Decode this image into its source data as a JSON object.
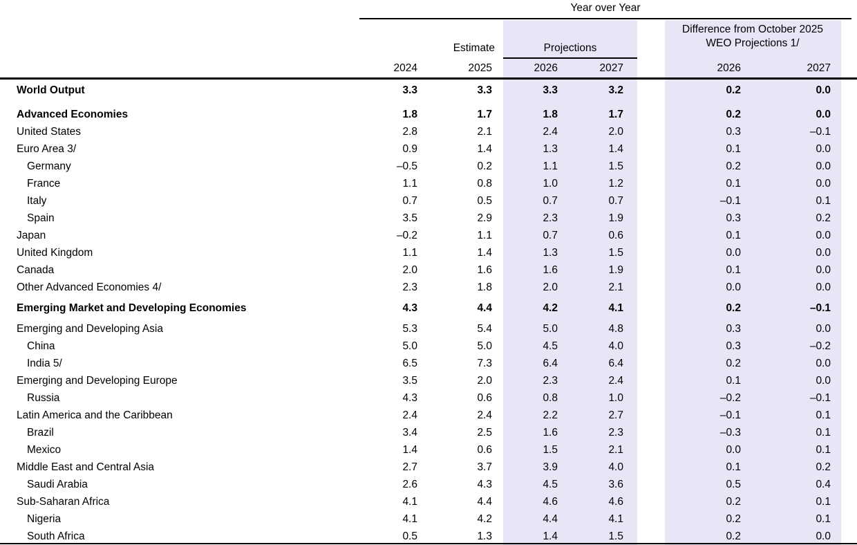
{
  "colors": {
    "highlight": "#e6e6f7",
    "rule": "#000000"
  },
  "header": {
    "year_over_year": "Year over Year",
    "estimate": "Estimate",
    "projections": "Projections",
    "difference_line1": "Difference from October 2025",
    "difference_line2": "WEO Projections 1/",
    "years": [
      "2024",
      "2025",
      "2026",
      "2027",
      "2026",
      "2027"
    ]
  },
  "table": {
    "column_keys": [
      "2024",
      "2025",
      "proj-2026",
      "proj-2027",
      "diff-2026",
      "diff-2027"
    ],
    "rows": [
      {
        "label": "World Output",
        "bold": true,
        "indent": 0,
        "gap_before": 0,
        "values": [
          "3.3",
          "3.3",
          "3.3",
          "3.2",
          "0.2",
          "0.0"
        ]
      },
      {
        "label": "Advanced Economies",
        "bold": true,
        "indent": 0,
        "gap_before": 10,
        "values": [
          "1.8",
          "1.7",
          "1.8",
          "1.7",
          "0.2",
          "0.0"
        ]
      },
      {
        "label": "United States",
        "bold": false,
        "indent": 0,
        "gap_before": 0,
        "values": [
          "2.8",
          "2.1",
          "2.4",
          "2.0",
          "0.3",
          "–0.1"
        ]
      },
      {
        "label": "Euro Area 3/",
        "bold": false,
        "indent": 0,
        "gap_before": 0,
        "values": [
          "0.9",
          "1.4",
          "1.3",
          "1.4",
          "0.1",
          "0.0"
        ]
      },
      {
        "label": "Germany",
        "bold": false,
        "indent": 1,
        "gap_before": 0,
        "values": [
          "–0.5",
          "0.2",
          "1.1",
          "1.5",
          "0.2",
          "0.0"
        ]
      },
      {
        "label": "France",
        "bold": false,
        "indent": 1,
        "gap_before": 0,
        "values": [
          "1.1",
          "0.8",
          "1.0",
          "1.2",
          "0.1",
          "0.0"
        ]
      },
      {
        "label": "Italy",
        "bold": false,
        "indent": 1,
        "gap_before": 0,
        "values": [
          "0.7",
          "0.5",
          "0.7",
          "0.7",
          "–0.1",
          "0.1"
        ]
      },
      {
        "label": "Spain",
        "bold": false,
        "indent": 1,
        "gap_before": 0,
        "values": [
          "3.5",
          "2.9",
          "2.3",
          "1.9",
          "0.3",
          "0.2"
        ]
      },
      {
        "label": "Japan",
        "bold": false,
        "indent": 0,
        "gap_before": 0,
        "values": [
          "–0.2",
          "1.1",
          "0.7",
          "0.6",
          "0.1",
          "0.0"
        ]
      },
      {
        "label": "United Kingdom",
        "bold": false,
        "indent": 0,
        "gap_before": 0,
        "values": [
          "1.1",
          "1.4",
          "1.3",
          "1.5",
          "0.0",
          "0.0"
        ]
      },
      {
        "label": "Canada",
        "bold": false,
        "indent": 0,
        "gap_before": 0,
        "values": [
          "2.0",
          "1.6",
          "1.6",
          "1.9",
          "0.1",
          "0.0"
        ]
      },
      {
        "label": "Other Advanced Economies 4/",
        "bold": false,
        "indent": 0,
        "gap_before": 0,
        "values": [
          "2.3",
          "1.8",
          "2.0",
          "2.1",
          "0.0",
          "0.0"
        ]
      },
      {
        "label": "Emerging Market and Developing Economies",
        "bold": true,
        "indent": 0,
        "gap_before": 5,
        "values": [
          "4.3",
          "4.4",
          "4.2",
          "4.1",
          "0.2",
          "–0.1"
        ]
      },
      {
        "label": "Emerging and Developing Asia",
        "bold": false,
        "indent": 0,
        "gap_before": 5,
        "values": [
          "5.3",
          "5.4",
          "5.0",
          "4.8",
          "0.3",
          "0.0"
        ]
      },
      {
        "label": "China",
        "bold": false,
        "indent": 1,
        "gap_before": 0,
        "values": [
          "5.0",
          "5.0",
          "4.5",
          "4.0",
          "0.3",
          "–0.2"
        ]
      },
      {
        "label": "India 5/",
        "bold": false,
        "indent": 1,
        "gap_before": 0,
        "values": [
          "6.5",
          "7.3",
          "6.4",
          "6.4",
          "0.2",
          "0.0"
        ]
      },
      {
        "label": "Emerging and Developing Europe",
        "bold": false,
        "indent": 0,
        "gap_before": 0,
        "values": [
          "3.5",
          "2.0",
          "2.3",
          "2.4",
          "0.1",
          "0.0"
        ]
      },
      {
        "label": "Russia",
        "bold": false,
        "indent": 1,
        "gap_before": 0,
        "values": [
          "4.3",
          "0.6",
          "0.8",
          "1.0",
          "–0.2",
          "–0.1"
        ]
      },
      {
        "label": "Latin America and the Caribbean",
        "bold": false,
        "indent": 0,
        "gap_before": 0,
        "values": [
          "2.4",
          "2.4",
          "2.2",
          "2.7",
          "–0.1",
          "0.1"
        ]
      },
      {
        "label": "Brazil",
        "bold": false,
        "indent": 1,
        "gap_before": 0,
        "values": [
          "3.4",
          "2.5",
          "1.6",
          "2.3",
          "–0.3",
          "0.1"
        ]
      },
      {
        "label": "Mexico",
        "bold": false,
        "indent": 1,
        "gap_before": 0,
        "values": [
          "1.4",
          "0.6",
          "1.5",
          "2.1",
          "0.0",
          "0.1"
        ]
      },
      {
        "label": "Middle East and Central Asia",
        "bold": false,
        "indent": 0,
        "gap_before": 0,
        "values": [
          "2.7",
          "3.7",
          "3.9",
          "4.0",
          "0.1",
          "0.2"
        ]
      },
      {
        "label": "Saudi Arabia",
        "bold": false,
        "indent": 1,
        "gap_before": 0,
        "values": [
          "2.6",
          "4.3",
          "4.5",
          "3.6",
          "0.5",
          "0.4"
        ]
      },
      {
        "label": "Sub-Saharan Africa",
        "bold": false,
        "indent": 0,
        "gap_before": 0,
        "values": [
          "4.1",
          "4.4",
          "4.6",
          "4.6",
          "0.2",
          "0.1"
        ]
      },
      {
        "label": "Nigeria",
        "bold": false,
        "indent": 1,
        "gap_before": 0,
        "values": [
          "4.1",
          "4.2",
          "4.4",
          "4.1",
          "0.2",
          "0.1"
        ]
      },
      {
        "label": "South Africa",
        "bold": false,
        "indent": 1,
        "gap_before": 0,
        "values": [
          "0.5",
          "1.3",
          "1.4",
          "1.5",
          "0.2",
          "0.0"
        ]
      }
    ]
  }
}
